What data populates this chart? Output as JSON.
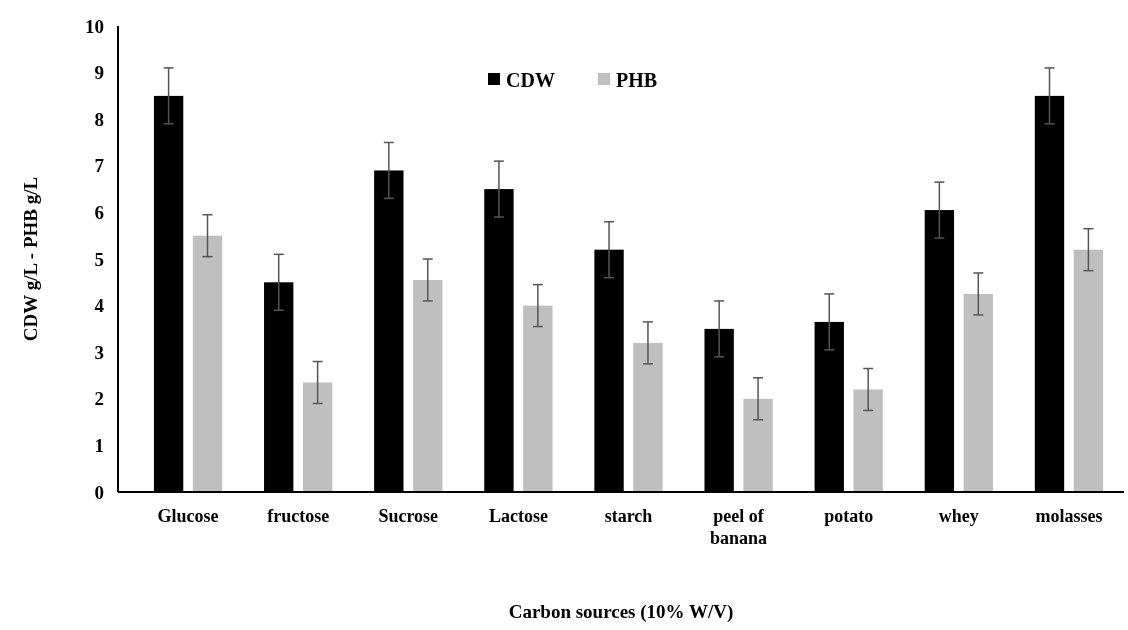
{
  "chart_data": {
    "type": "bar",
    "xlabel": "Carbon sources (10% W/V)",
    "ylabel": "CDW g/L - PHB g/L",
    "categories": [
      "Glucose",
      "fructose",
      "Sucrose",
      "Lactose",
      "starch",
      "peel of banana",
      "potato",
      "whey",
      "molasses"
    ],
    "series": [
      {
        "name": "CDW",
        "color": "#000000",
        "values": [
          8.5,
          4.5,
          6.9,
          6.5,
          5.2,
          3.5,
          3.65,
          6.05,
          8.5
        ],
        "errors": [
          0.6,
          0.6,
          0.6,
          0.6,
          0.6,
          0.6,
          0.6,
          0.6,
          0.6
        ]
      },
      {
        "name": "PHB",
        "color": "#bfbfbf",
        "values": [
          5.5,
          2.35,
          4.55,
          4.0,
          3.2,
          2.0,
          2.2,
          4.25,
          5.2
        ],
        "errors": [
          0.45,
          0.45,
          0.45,
          0.45,
          0.45,
          0.45,
          0.45,
          0.45,
          0.45
        ]
      }
    ],
    "ylim": [
      0,
      10
    ],
    "yticks": [
      0,
      1,
      2,
      3,
      4,
      5,
      6,
      7,
      8,
      9,
      10
    ],
    "legend": "top",
    "grid": false
  }
}
